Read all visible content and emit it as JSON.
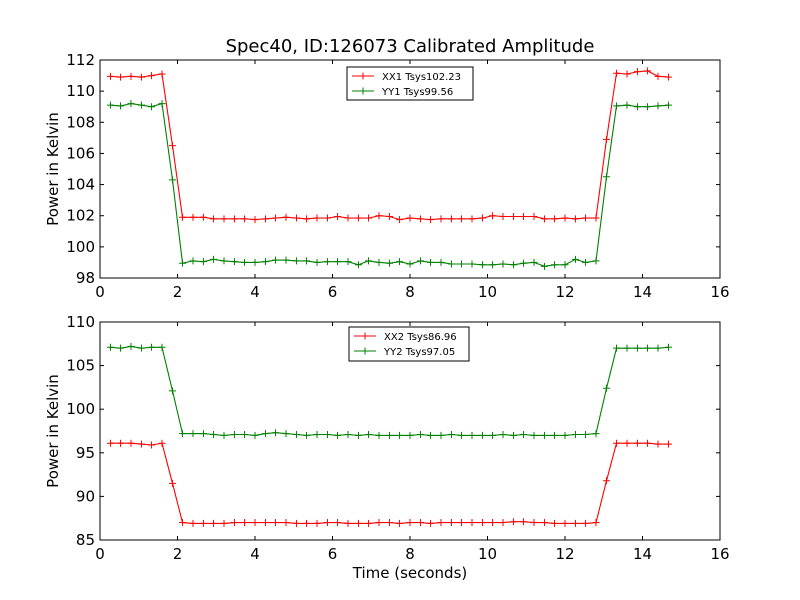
{
  "title": "Spec40, ID:126073 Calibrated Amplitude",
  "chart_data": [
    {
      "type": "line",
      "title": "Spec40, ID:126073 Calibrated Amplitude",
      "xlabel": "",
      "ylabel": "Power in Kelvin",
      "xlim": [
        0,
        16
      ],
      "ylim": [
        98,
        112
      ],
      "xticks": [
        "0",
        "2",
        "4",
        "6",
        "8",
        "10",
        "12",
        "14",
        "16"
      ],
      "yticks": [
        "98",
        "100",
        "102",
        "104",
        "106",
        "108",
        "110",
        "112"
      ],
      "legend_position": "top-center",
      "grid": false,
      "x": [
        0.27,
        0.53,
        0.8,
        1.07,
        1.33,
        1.6,
        1.87,
        2.13,
        2.4,
        2.67,
        2.93,
        3.2,
        3.47,
        3.73,
        4.0,
        4.27,
        4.53,
        4.8,
        5.07,
        5.33,
        5.6,
        5.87,
        6.13,
        6.4,
        6.67,
        6.93,
        7.2,
        7.47,
        7.73,
        8.0,
        8.27,
        8.53,
        8.8,
        9.07,
        9.33,
        9.6,
        9.87,
        10.13,
        10.4,
        10.67,
        10.93,
        11.2,
        11.47,
        11.73,
        12.0,
        12.27,
        12.53,
        12.8,
        13.07,
        13.33,
        13.6,
        13.87,
        14.13,
        14.4,
        14.67
      ],
      "series": [
        {
          "name": "XX1 Tsys102.23",
          "color": "#ff0000",
          "values": [
            110.95,
            110.9,
            110.95,
            110.9,
            111.0,
            111.1,
            106.5,
            101.9,
            101.9,
            101.9,
            101.8,
            101.8,
            101.8,
            101.8,
            101.75,
            101.8,
            101.85,
            101.9,
            101.85,
            101.8,
            101.85,
            101.85,
            101.95,
            101.85,
            101.85,
            101.85,
            102.0,
            101.95,
            101.75,
            101.85,
            101.8,
            101.75,
            101.8,
            101.8,
            101.8,
            101.8,
            101.85,
            102.0,
            101.95,
            101.95,
            101.95,
            101.95,
            101.8,
            101.8,
            101.85,
            101.8,
            101.85,
            101.85,
            106.9,
            111.15,
            111.1,
            111.25,
            111.3,
            110.95,
            110.9
          ]
        },
        {
          "name": "YY1 Tsys99.56",
          "color": "#008000",
          "values": [
            109.1,
            109.05,
            109.2,
            109.1,
            109.0,
            109.2,
            104.3,
            98.95,
            99.1,
            99.05,
            99.2,
            99.1,
            99.05,
            99.0,
            99.0,
            99.05,
            99.15,
            99.15,
            99.1,
            99.1,
            99.0,
            99.05,
            99.05,
            99.05,
            98.85,
            99.1,
            99.0,
            98.95,
            99.05,
            98.9,
            99.1,
            99.0,
            99.0,
            98.9,
            98.9,
            98.9,
            98.85,
            98.85,
            98.9,
            98.85,
            98.95,
            99.0,
            98.75,
            98.85,
            98.85,
            99.2,
            99.0,
            99.1,
            104.5,
            109.05,
            109.1,
            109.0,
            109.0,
            109.05,
            109.1
          ]
        }
      ]
    },
    {
      "type": "line",
      "title": "",
      "xlabel": "Time (seconds)",
      "ylabel": "Power in Kelvin",
      "xlim": [
        0,
        16
      ],
      "ylim": [
        85,
        110
      ],
      "xticks": [
        "0",
        "2",
        "4",
        "6",
        "8",
        "10",
        "12",
        "14",
        "16"
      ],
      "yticks": [
        "85",
        "90",
        "95",
        "100",
        "105",
        "110"
      ],
      "legend_position": "top-center",
      "grid": false,
      "x": [
        0.27,
        0.53,
        0.8,
        1.07,
        1.33,
        1.6,
        1.87,
        2.13,
        2.4,
        2.67,
        2.93,
        3.2,
        3.47,
        3.73,
        4.0,
        4.27,
        4.53,
        4.8,
        5.07,
        5.33,
        5.6,
        5.87,
        6.13,
        6.4,
        6.67,
        6.93,
        7.2,
        7.47,
        7.73,
        8.0,
        8.27,
        8.53,
        8.8,
        9.07,
        9.33,
        9.6,
        9.87,
        10.13,
        10.4,
        10.67,
        10.93,
        11.2,
        11.47,
        11.73,
        12.0,
        12.27,
        12.53,
        12.8,
        13.07,
        13.33,
        13.6,
        13.87,
        14.13,
        14.4,
        14.67
      ],
      "series": [
        {
          "name": "XX2 Tsys86.96",
          "color": "#ff0000",
          "values": [
            96.1,
            96.1,
            96.1,
            96.0,
            95.9,
            96.1,
            91.5,
            87.0,
            86.9,
            86.9,
            86.9,
            86.9,
            87.0,
            87.0,
            87.0,
            87.0,
            87.0,
            87.0,
            86.9,
            86.9,
            86.9,
            87.0,
            87.0,
            86.9,
            86.9,
            86.9,
            87.0,
            87.0,
            86.9,
            87.0,
            87.0,
            86.9,
            87.0,
            87.0,
            87.0,
            87.0,
            87.0,
            87.0,
            87.0,
            87.1,
            87.1,
            87.0,
            87.0,
            86.9,
            86.9,
            86.9,
            86.9,
            87.0,
            91.8,
            96.1,
            96.1,
            96.1,
            96.1,
            96.0,
            96.0
          ]
        },
        {
          "name": "YY2 Tsys97.05",
          "color": "#008000",
          "values": [
            107.1,
            107.0,
            107.2,
            107.0,
            107.1,
            107.1,
            102.1,
            97.2,
            97.2,
            97.2,
            97.1,
            97.0,
            97.1,
            97.1,
            97.0,
            97.2,
            97.3,
            97.2,
            97.1,
            97.0,
            97.1,
            97.1,
            97.0,
            97.1,
            97.0,
            97.1,
            97.0,
            97.0,
            97.0,
            97.0,
            97.1,
            97.0,
            97.0,
            97.1,
            97.0,
            97.0,
            97.0,
            97.0,
            97.1,
            97.0,
            97.1,
            97.0,
            97.0,
            97.0,
            97.0,
            97.1,
            97.1,
            97.2,
            102.4,
            107.0,
            107.0,
            107.0,
            107.0,
            107.0,
            107.1
          ]
        }
      ]
    }
  ]
}
